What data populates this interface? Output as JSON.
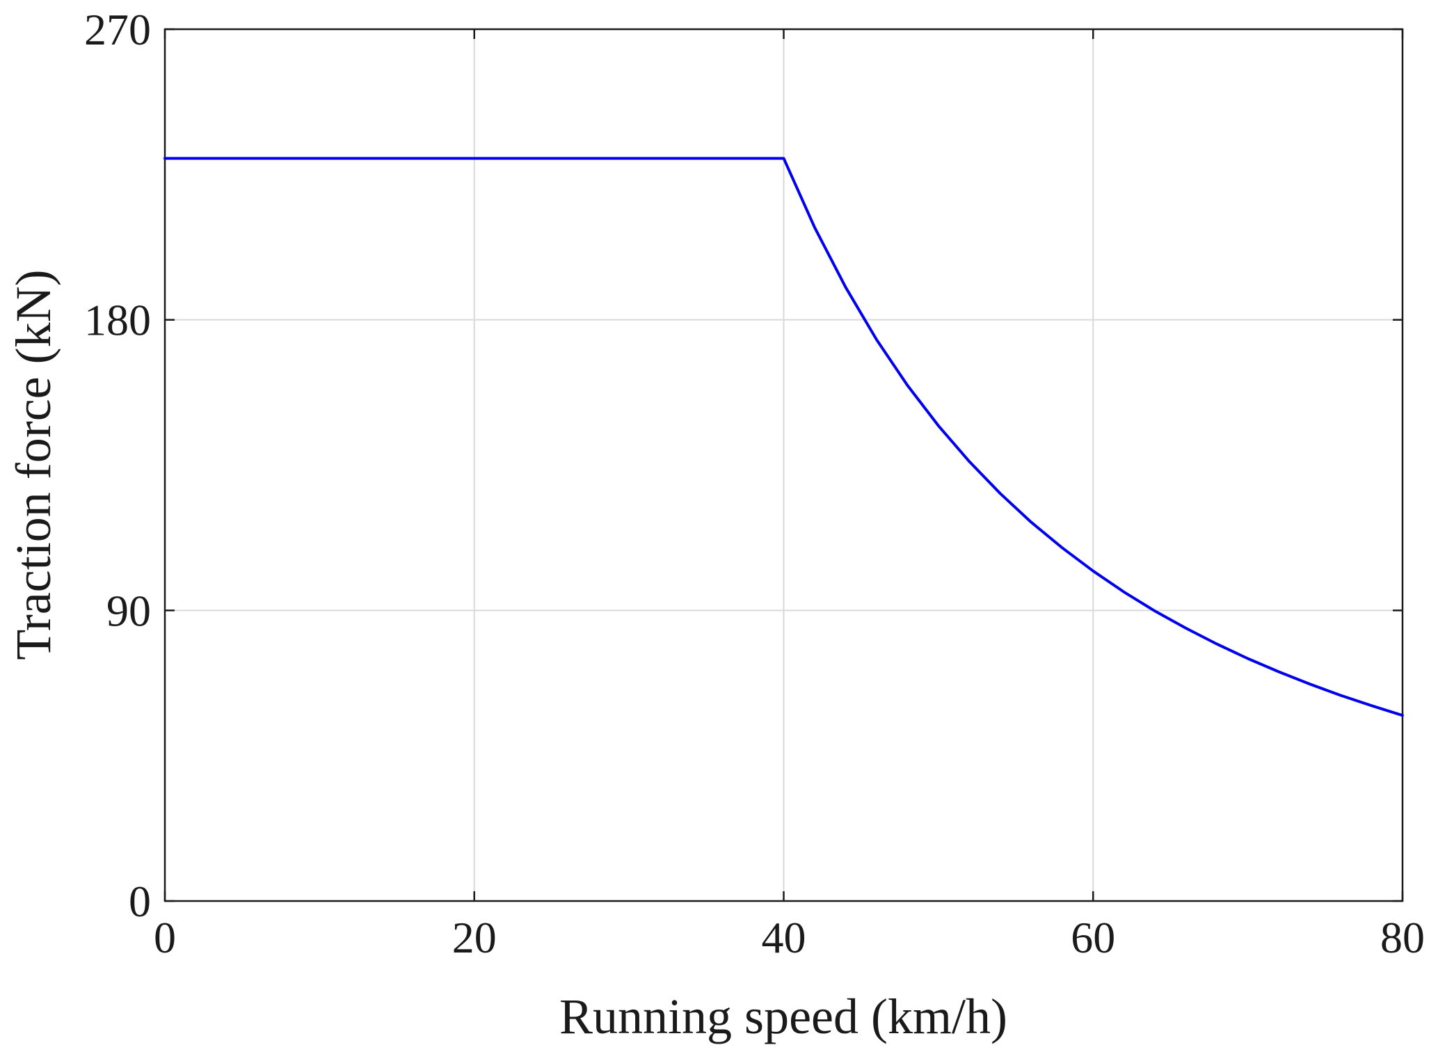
{
  "chart_data": {
    "type": "line",
    "xlabel": "Running speed (km/h)",
    "ylabel": "Traction force (kN)",
    "xlim": [
      0,
      80
    ],
    "ylim": [
      0,
      270
    ],
    "xticks": [
      0,
      20,
      40,
      60,
      80
    ],
    "yticks": [
      0,
      90,
      180,
      270
    ],
    "grid": true,
    "series": [
      {
        "color": "#0000ee",
        "x": [
          0,
          10,
          20,
          30,
          40,
          42,
          44,
          46,
          48,
          50,
          52,
          54,
          56,
          58,
          60,
          62,
          64,
          66,
          68,
          70,
          72,
          74,
          76,
          78,
          80
        ],
        "y": [
          230,
          230,
          230,
          230,
          230,
          208.6,
          190.1,
          173.9,
          159.7,
          147.2,
          136.1,
          126.2,
          117.3,
          109.4,
          102.2,
          95.7,
          89.8,
          84.5,
          79.6,
          75.1,
          71.0,
          67.2,
          63.7,
          60.5,
          57.5
        ]
      }
    ]
  }
}
